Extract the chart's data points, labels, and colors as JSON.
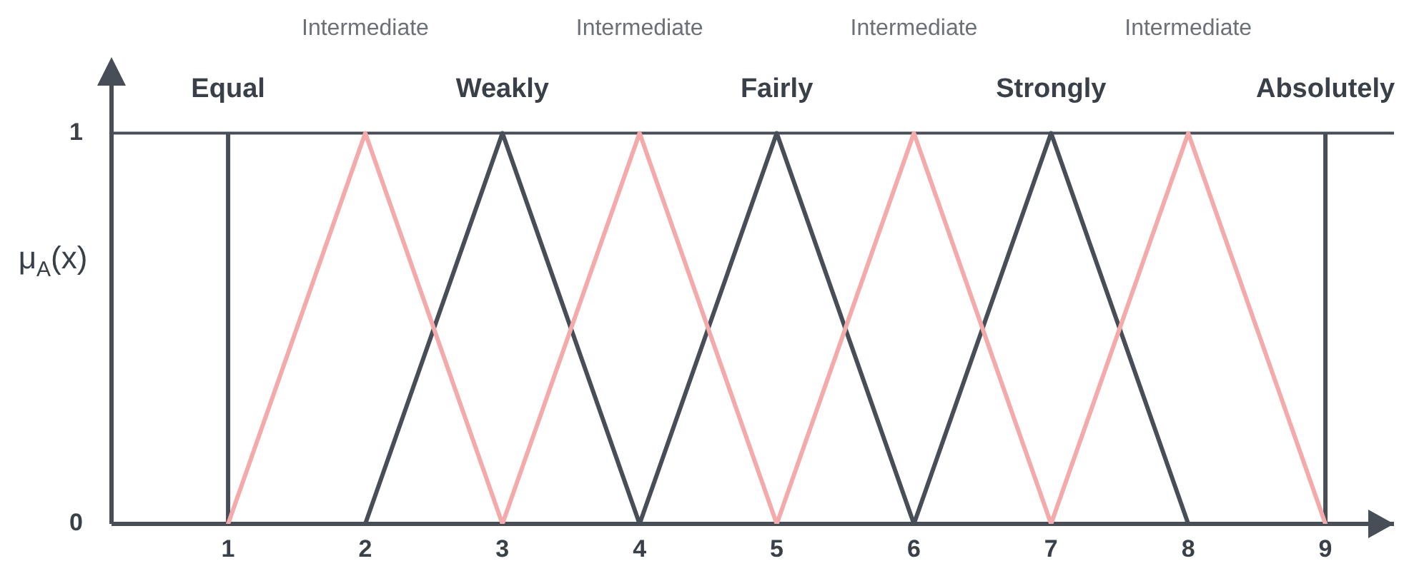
{
  "chart_data": {
    "type": "line",
    "ylabel": "μ$_{A}$(x)",
    "xlim": [
      0.15,
      9.5
    ],
    "ylim": [
      0,
      1.18
    ],
    "xticks": [
      1,
      2,
      3,
      4,
      5,
      6,
      7,
      8,
      9
    ],
    "yticks": [
      0,
      1
    ],
    "grid": false,
    "legend": false,
    "marker": "none",
    "line_style": "solid",
    "series": [
      {
        "color": "#f4aaaa",
        "x": [
          1,
          2,
          3,
          4,
          5,
          6,
          7,
          8,
          9
        ],
        "values": [
          0,
          1,
          0,
          1,
          0,
          1,
          0,
          1,
          0
        ]
      },
      {
        "color": "#474e57",
        "x": [
          2,
          3,
          4,
          5,
          6,
          7,
          8
        ],
        "values": [
          0,
          1,
          0,
          1,
          0,
          1,
          0
        ]
      }
    ],
    "ref_lines": [
      {
        "axis": "y",
        "value": 1,
        "color": "#474e57"
      },
      {
        "axis": "x",
        "value": 1,
        "color": "#474e57"
      },
      {
        "axis": "x",
        "value": 9,
        "color": "#474e57"
      }
    ],
    "annotations": [
      "Equal",
      "Intermediate",
      "Weakly",
      "Intermediate",
      "Fairly",
      "Intermediate",
      "Strongly",
      "Intermediate",
      "Absolutely"
    ]
  }
}
